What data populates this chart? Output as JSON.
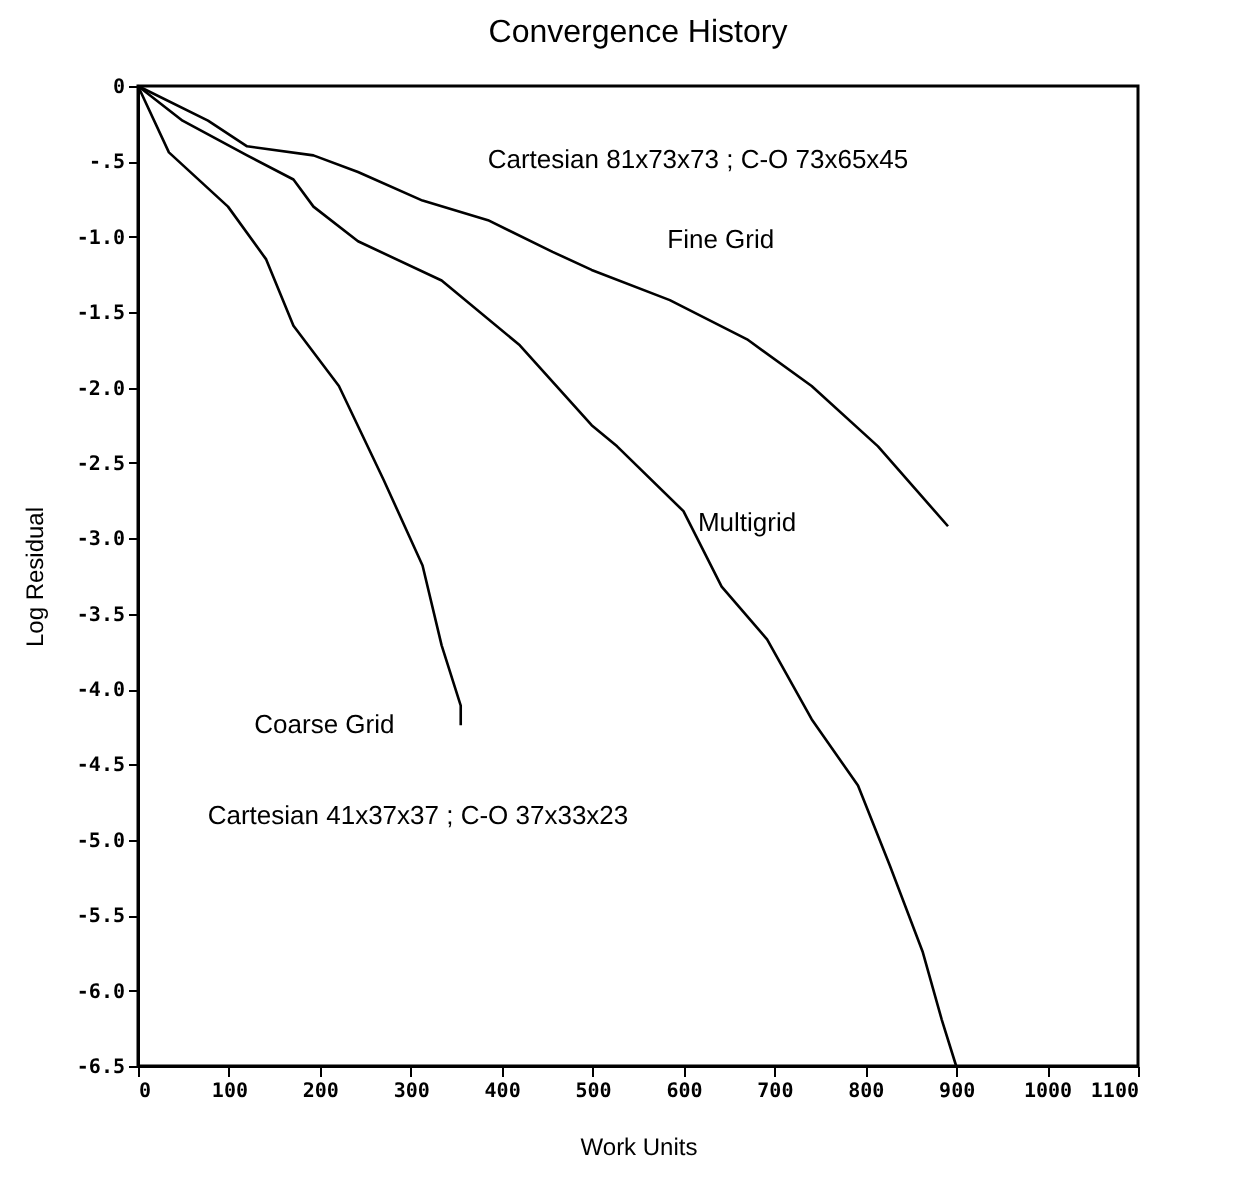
{
  "chart_data": {
    "type": "line",
    "title": "Convergence History",
    "xlabel": "Work Units",
    "ylabel": "Log Residual",
    "xlim": [
      0,
      1100
    ],
    "xticks": [
      0,
      100,
      200,
      300,
      400,
      500,
      600,
      700,
      800,
      900,
      1000,
      1100
    ],
    "ylim": [
      -6.5,
      0
    ],
    "yticks": [
      {
        "value": 0,
        "label": "0"
      },
      {
        "value": -0.5,
        "label": "-.5"
      },
      {
        "value": -1,
        "label": "-1.0"
      },
      {
        "value": -1.5,
        "label": "-1.5"
      },
      {
        "value": -2,
        "label": "-2.0"
      },
      {
        "value": -2.5,
        "label": "-2.5"
      },
      {
        "value": -3,
        "label": "-3.0"
      },
      {
        "value": -3.5,
        "label": "-3.5"
      },
      {
        "value": -4,
        "label": "-4.0"
      },
      {
        "value": -4.5,
        "label": "-4.5"
      },
      {
        "value": -5,
        "label": "-5.0"
      },
      {
        "value": -5.5,
        "label": "-5.5"
      },
      {
        "value": -6,
        "label": "-6.0"
      },
      {
        "value": -6.5,
        "label": "-6.5"
      }
    ],
    "grid": false,
    "legend": false,
    "marker": "none",
    "line_style": "solid",
    "series": [
      {
        "name": "Fine Grid",
        "color": "#000000",
        "x": [
          0,
          77,
          120,
          193,
          242,
          313,
          385,
          456,
          499,
          585,
          670,
          741,
          814,
          891
        ],
        "values": [
          0,
          -0.23,
          -0.4,
          -0.46,
          -0.57,
          -0.76,
          -0.89,
          -1.1,
          -1.22,
          -1.42,
          -1.68,
          -1.99,
          -2.39,
          -2.92
        ]
      },
      {
        "name": "Multigrid",
        "color": "#000000",
        "x": [
          0,
          49,
          120,
          171,
          193,
          242,
          334,
          420,
          499,
          527,
          600,
          642,
          692,
          741,
          792,
          827,
          863,
          884,
          900
        ],
        "values": [
          0,
          -0.23,
          -0.46,
          -0.62,
          -0.8,
          -1.03,
          -1.29,
          -1.72,
          -2.25,
          -2.39,
          -2.82,
          -3.32,
          -3.67,
          -4.2,
          -4.64,
          -5.17,
          -5.74,
          -6.19,
          -6.5
        ]
      },
      {
        "name": "Coarse Grid",
        "color": "#000000",
        "x": [
          0,
          34,
          99,
          141,
          171,
          221,
          270,
          313,
          334,
          355,
          355
        ],
        "values": [
          0,
          -0.44,
          -0.8,
          -1.15,
          -1.59,
          -1.99,
          -2.61,
          -3.18,
          -3.71,
          -4.11,
          -4.24
        ]
      }
    ],
    "annotations": [
      "Cartesian 81x73x73 ; C-O 73x65x45",
      "Cartesian 41x37x37 ; C-O 37x33x23"
    ]
  }
}
